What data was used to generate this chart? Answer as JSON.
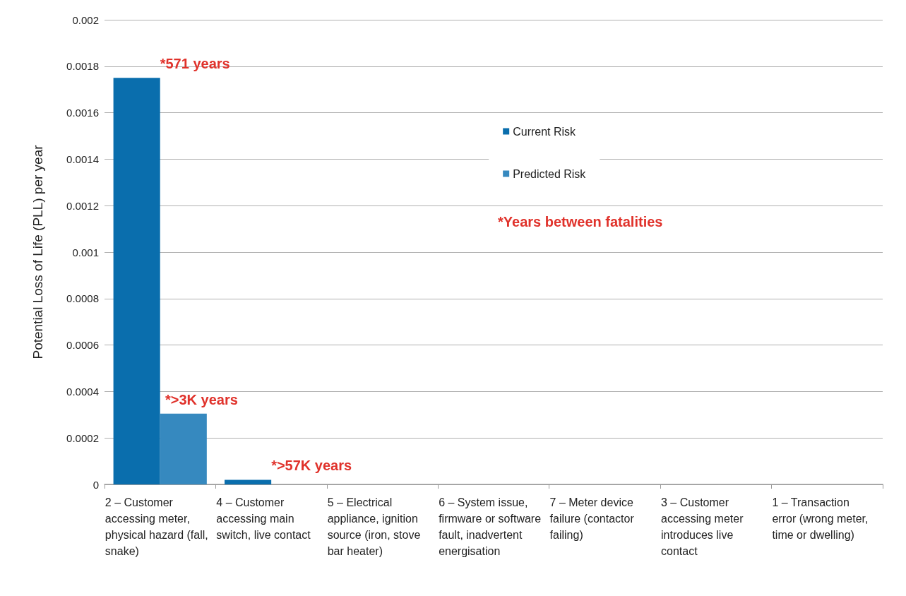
{
  "chart_data": {
    "type": "bar",
    "ylabel": "Potential Loss of Life (PLL) per year",
    "categories": [
      "2 – Customer accessing meter, physical hazard (fall, snake)",
      "4 – Customer accessing main switch, live contact",
      "5 – Electrical appliance, ignition source (iron, stove bar heater)",
      "6 – System issue, firmware or software fault, inadvertent energisation",
      "7 – Meter device failure (contactor failing)",
      "3 – Customer accessing meter introduces live contact",
      "1 – Transaction error (wrong meter, time or dwelling)"
    ],
    "series": [
      {
        "name": "Current Risk",
        "color": "#0a6ead",
        "values": [
          0.00175,
          2e-05,
          0,
          0,
          0,
          0,
          0
        ]
      },
      {
        "name": "Predicted Risk",
        "color": "#3689bf",
        "values": [
          0.000305,
          0,
          0,
          0,
          0,
          0,
          0
        ]
      }
    ],
    "ylim": [
      0,
      0.002
    ],
    "yticks": [
      0,
      0.0002,
      0.0004,
      0.0006,
      0.0008,
      0.001,
      0.0012,
      0.0014,
      0.0016,
      0.0018,
      0.002
    ],
    "grid": "y",
    "legend": "top",
    "annotations": [
      {
        "text": "*571 years",
        "x": "2 – Customer accessing meter, physical hazard (fall, snake)",
        "y": 0.00175
      },
      "*>3K years",
      {
        "text": "*>57K years",
        "x": "4 – Customer accessing main switch, live contact",
        "y": 2e-05
      },
      "*Years between fatalities"
    ]
  }
}
